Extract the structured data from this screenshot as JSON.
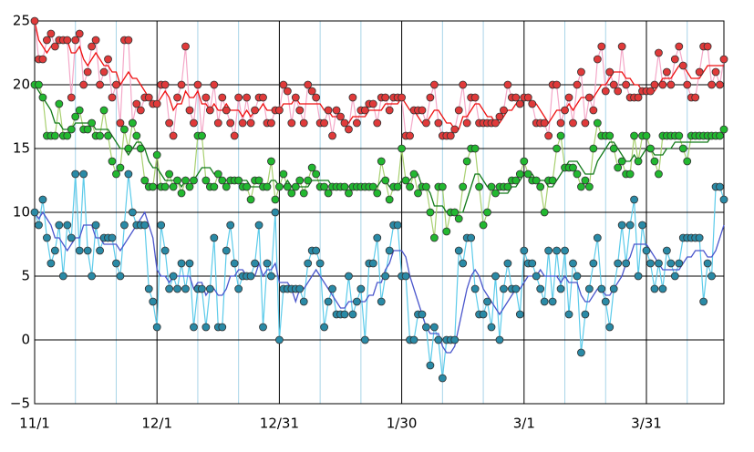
{
  "chart_data": {
    "type": "line",
    "categories": [
      "11/1",
      null,
      null,
      null,
      null,
      null,
      null,
      null,
      null,
      null,
      null,
      null,
      null,
      null,
      null,
      null,
      null,
      null,
      null,
      null,
      null,
      null,
      null,
      null,
      null,
      null,
      null,
      null,
      null,
      null,
      "12/1",
      null,
      null,
      null,
      null,
      null,
      null,
      null,
      null,
      null,
      null,
      null,
      null,
      null,
      null,
      null,
      null,
      null,
      null,
      null,
      null,
      null,
      null,
      null,
      null,
      null,
      null,
      null,
      null,
      null,
      "12/31",
      null,
      null,
      null,
      null,
      null,
      null,
      null,
      null,
      null,
      null,
      null,
      null,
      null,
      null,
      null,
      null,
      null,
      null,
      null,
      null,
      null,
      null,
      null,
      null,
      null,
      null,
      null,
      null,
      null,
      "1/30",
      null,
      null,
      null,
      null,
      null,
      null,
      null,
      null,
      null,
      null,
      null,
      null,
      null,
      null,
      null,
      null,
      null,
      null,
      null,
      null,
      null,
      null,
      null,
      null,
      null,
      null,
      null,
      null,
      null,
      "3/1",
      null,
      null,
      null,
      null,
      null,
      null,
      null,
      null,
      null,
      null,
      null,
      null,
      null,
      null,
      null,
      null,
      null,
      null,
      null,
      null,
      null,
      null,
      null,
      null,
      null,
      null,
      null,
      null,
      null,
      "3/31",
      null,
      null,
      null,
      null,
      null,
      null,
      null,
      null,
      null,
      null,
      null,
      null,
      null,
      null,
      null,
      null,
      null,
      null,
      null
    ],
    "ylim": [
      -5,
      25
    ],
    "yticks": [
      {
        "value": -5,
        "label": "−5"
      },
      0,
      5,
      10,
      15,
      20,
      25
    ],
    "grid": true,
    "series": [
      {
        "style": "markers",
        "color": "#e03a3a",
        "line_color": "#f4a8c8",
        "values": [
          25,
          22,
          22,
          23.5,
          24,
          23,
          23.5,
          23.5,
          23.5,
          19,
          23.5,
          24,
          20,
          21,
          23,
          23.5,
          20,
          21,
          22,
          19,
          20,
          17,
          23.5,
          23.5,
          17,
          18.5,
          18,
          19,
          19,
          18.5,
          18.5,
          20,
          20,
          17,
          16,
          19,
          20,
          23,
          18,
          17,
          20,
          16,
          19,
          18,
          20,
          17,
          19,
          18,
          17,
          16,
          19,
          17,
          19,
          17,
          18,
          19,
          19,
          17,
          17,
          18,
          18,
          20,
          19.5,
          17,
          19,
          18,
          17,
          20,
          19.5,
          19,
          17,
          17,
          18,
          16,
          18,
          17.5,
          17,
          16.5,
          19,
          17,
          18,
          18,
          18.5,
          18.5,
          17,
          19,
          19,
          18,
          19,
          19,
          19,
          16,
          16,
          18,
          18,
          18,
          17,
          19,
          20,
          17,
          16,
          16,
          16,
          16.5,
          18,
          20,
          17,
          19,
          19,
          17,
          17,
          17,
          17,
          17,
          17.5,
          18,
          20,
          19,
          19,
          18.5,
          19,
          19,
          18.5,
          17,
          17,
          17,
          16,
          20,
          20,
          17,
          18,
          19,
          17,
          20,
          21,
          17,
          19,
          18,
          22,
          23,
          19.5,
          21,
          20,
          19.5,
          23,
          20,
          19,
          19,
          19,
          19.5,
          19.5,
          19.5,
          20,
          22.5,
          20,
          21,
          20,
          22,
          23,
          21.5,
          20,
          19,
          19,
          21,
          23,
          23,
          20,
          21,
          20,
          22
        ]
      },
      {
        "style": "markers",
        "color": "#22b830",
        "line_color": "#a8d070",
        "values": [
          20,
          20,
          19,
          16,
          16,
          16,
          18.5,
          16,
          16,
          16.5,
          17.5,
          18,
          16.5,
          16.5,
          17,
          16,
          16,
          18,
          16,
          14,
          13,
          13.5,
          16.5,
          15,
          17,
          16,
          15,
          12.5,
          12,
          12,
          14.5,
          12,
          12,
          13,
          12,
          12.5,
          11.5,
          12.5,
          12,
          12.5,
          16,
          16,
          12.5,
          12,
          12,
          13,
          12.5,
          12,
          12.5,
          12.5,
          12.5,
          12,
          12,
          11,
          12.5,
          12.5,
          12,
          12,
          14,
          11,
          12,
          13,
          12,
          11.5,
          12,
          12.5,
          11.5,
          12.5,
          13.5,
          13,
          12,
          12,
          11.5,
          12,
          12,
          12,
          12,
          11.5,
          12,
          12,
          12,
          12,
          12,
          12,
          11.5,
          14,
          12.5,
          11,
          12,
          12,
          15,
          12.5,
          12,
          13,
          11.5,
          12,
          12,
          10,
          8,
          12,
          12,
          8.5,
          10,
          10,
          9.5,
          12,
          14,
          15,
          15,
          12,
          9,
          10,
          12,
          11.5,
          12,
          12,
          12,
          12.5,
          12.5,
          13,
          14,
          13,
          12.5,
          12.5,
          12,
          10,
          12.5,
          12.5,
          15,
          16,
          13.5,
          13.5,
          13.5,
          13,
          12,
          12.5,
          12,
          15,
          17,
          16,
          16,
          16,
          15,
          13.5,
          14,
          13,
          13,
          16,
          14,
          16,
          16,
          15,
          14,
          13,
          16,
          16,
          16,
          16,
          16,
          15,
          14,
          16,
          16,
          16,
          16,
          16,
          16,
          16,
          16,
          16.5
        ]
      },
      {
        "style": "markers",
        "color": "#2a8aa6",
        "line_color": "#5ccbea",
        "values": [
          10,
          9,
          11,
          8,
          6,
          7,
          9,
          5,
          9,
          8,
          13,
          7,
          13,
          7,
          5,
          9,
          7,
          8,
          8,
          8,
          6,
          5,
          9,
          13,
          10,
          9,
          9,
          9,
          4,
          3,
          1,
          9,
          7,
          4,
          5,
          4,
          6,
          4,
          6,
          1,
          4,
          4,
          1,
          4,
          8,
          1,
          1,
          7,
          9,
          6,
          4,
          5,
          5,
          5,
          6,
          9,
          1,
          6,
          5,
          10,
          0,
          4,
          4,
          4,
          4,
          4,
          3,
          6,
          7,
          7,
          6,
          1,
          3,
          4,
          2,
          2,
          2,
          5,
          2,
          3,
          4,
          0,
          6,
          6,
          8,
          3,
          5,
          7,
          9,
          9,
          5,
          5,
          0,
          0,
          2,
          2,
          1,
          -2,
          1,
          0,
          -3,
          0,
          0,
          0,
          7,
          6,
          8,
          8,
          4,
          2,
          2,
          3,
          1,
          5,
          0,
          4,
          6,
          4,
          4,
          2,
          7,
          6,
          6,
          5,
          4,
          3,
          7,
          3,
          7,
          4,
          7,
          2,
          6,
          5,
          -1,
          2,
          4,
          6,
          8,
          4,
          3,
          1,
          4,
          6,
          9,
          6,
          9,
          11,
          5,
          9,
          7,
          6,
          4,
          6,
          4,
          7,
          6,
          5,
          6,
          8,
          8,
          8,
          8,
          8,
          3,
          6,
          5,
          12,
          12,
          11
        ]
      },
      {
        "style": "line",
        "color": "#ee1111",
        "values": [
          25,
          23.5,
          23,
          22.5,
          23,
          23,
          23.5,
          23.5,
          23.5,
          22.5,
          22.5,
          23,
          22,
          21.5,
          22,
          22.5,
          22,
          21.5,
          21.5,
          21,
          21,
          20,
          20.5,
          21,
          20.5,
          20.5,
          20,
          19.5,
          19,
          18.5,
          18.5,
          19,
          19.5,
          19,
          18,
          18.5,
          18.5,
          19.5,
          19,
          19,
          19.5,
          18.5,
          18.5,
          18,
          18.5,
          18,
          18,
          18.5,
          18,
          18,
          18,
          17.5,
          18,
          17.5,
          18,
          18,
          18.5,
          18,
          18,
          18,
          18,
          18.5,
          18.5,
          18.5,
          19,
          18.5,
          18.5,
          18.5,
          18.5,
          18.5,
          18.5,
          18,
          18,
          17.5,
          17.5,
          17.5,
          17,
          17,
          17.5,
          17.5,
          17.5,
          17.5,
          18,
          18,
          18,
          18,
          18.5,
          18.5,
          18.5,
          18.5,
          19,
          18.5,
          18,
          18,
          17.5,
          17,
          17,
          17.5,
          18,
          18,
          17.5,
          17,
          17,
          16.5,
          16.5,
          17.5,
          17.5,
          18,
          18.5,
          18.5,
          18,
          17.5,
          17.5,
          17,
          17,
          17.5,
          18,
          18,
          18.5,
          18.5,
          19,
          19,
          18.5,
          18.5,
          18,
          17.5,
          17,
          17.5,
          18,
          18,
          18,
          18.5,
          18,
          18.5,
          19,
          19,
          19,
          19,
          19.5,
          20,
          20,
          20.5,
          21,
          21,
          21,
          20.5,
          20.5,
          20,
          20,
          19.5,
          19.5,
          19.5,
          19.5,
          20,
          20.5,
          20.5,
          20.5,
          21,
          21.5,
          21.5,
          21,
          20.5,
          20.5,
          20.5,
          21,
          21.5,
          21.5,
          21.5,
          21.5,
          21.5
        ]
      },
      {
        "style": "line",
        "color": "#137a1a",
        "values": [
          20,
          19.5,
          19,
          18.5,
          18,
          17,
          17,
          16.5,
          16.5,
          16.5,
          17,
          17,
          17,
          17,
          17,
          16.5,
          16.5,
          16.5,
          16.5,
          16,
          15.5,
          15,
          15,
          14.5,
          15,
          15.5,
          15.5,
          15,
          14,
          13.5,
          13.5,
          13,
          12.5,
          12.5,
          12.5,
          12.5,
          12,
          12.5,
          12,
          12.5,
          13,
          13.5,
          13.5,
          13.5,
          13,
          13,
          12.5,
          12.5,
          12.5,
          12.5,
          12.5,
          12.5,
          12.5,
          12,
          12,
          12,
          12,
          12,
          12.5,
          12.5,
          12,
          12,
          12.5,
          12,
          12,
          12,
          12,
          12,
          12.5,
          12.5,
          12.5,
          12.5,
          12.5,
          12,
          12,
          12,
          12,
          12,
          12,
          12,
          12,
          12,
          12,
          12,
          12,
          12.5,
          12.5,
          12,
          12,
          12,
          12.5,
          12.5,
          12.5,
          13,
          13,
          12,
          12,
          11.5,
          10.5,
          10.5,
          10.5,
          10,
          10,
          10,
          10,
          10,
          11,
          12,
          13,
          13,
          12.5,
          12,
          12,
          11.5,
          11.5,
          11.5,
          11.5,
          12,
          12,
          12.5,
          13,
          13,
          13,
          12.5,
          12.5,
          12.5,
          12,
          12,
          12.5,
          13,
          13.5,
          14,
          14,
          14,
          13.5,
          13,
          13,
          13,
          14,
          14.5,
          15,
          15.5,
          15.5,
          15,
          14.5,
          14,
          14,
          14.5,
          14,
          14.5,
          15,
          15,
          14.5,
          14.5,
          14.5,
          15,
          15,
          15.5,
          15.5,
          15.5,
          15.5,
          15.5,
          15.5,
          15.5,
          15.5,
          15.5,
          16,
          16,
          16,
          16
        ]
      },
      {
        "style": "line",
        "color": "#4a56cc",
        "values": [
          10,
          9.5,
          10,
          9.5,
          9,
          8,
          8,
          7.5,
          7,
          7.5,
          8,
          8,
          9,
          9,
          9,
          8,
          8,
          7.5,
          7.5,
          7.5,
          7.5,
          7,
          7.5,
          8,
          8.5,
          9,
          9.5,
          10,
          9,
          8,
          5.5,
          5,
          5,
          4.5,
          5,
          5,
          5,
          5,
          5,
          4,
          4.5,
          4.5,
          3.5,
          4,
          4,
          3.5,
          3.5,
          4,
          5,
          5,
          5.5,
          5.5,
          5,
          5,
          5,
          6,
          5,
          5.5,
          5.5,
          6,
          4.5,
          4.5,
          4.5,
          4,
          3,
          4,
          4,
          4.5,
          5,
          5.5,
          5,
          4.5,
          4,
          3.5,
          3,
          2.5,
          2.5,
          3,
          3,
          3,
          3,
          3,
          3.5,
          3.5,
          4.5,
          4.5,
          5.5,
          6,
          7,
          7,
          7,
          6.5,
          5,
          4,
          3,
          2,
          1,
          0.5,
          0.5,
          0.5,
          -0.5,
          -1,
          -1,
          -0.5,
          1,
          2.5,
          4,
          5,
          5.5,
          5,
          4,
          3.5,
          3,
          2.5,
          2,
          2.5,
          3,
          3.5,
          4,
          4,
          4.5,
          5,
          5,
          5,
          5.5,
          5,
          5,
          5,
          5,
          4.5,
          5,
          4.5,
          4.5,
          4.5,
          3.5,
          3,
          3,
          3.5,
          4,
          4,
          3.5,
          3.5,
          4,
          4.5,
          5,
          6,
          6.5,
          7.5,
          7.5,
          7.5,
          7.5,
          7,
          6.5,
          6,
          5.5,
          5.5,
          5.5,
          5.5,
          5.5,
          6,
          6.5,
          6.5,
          7,
          7,
          7,
          6.5,
          6.5,
          7,
          8,
          9
        ]
      }
    ]
  }
}
